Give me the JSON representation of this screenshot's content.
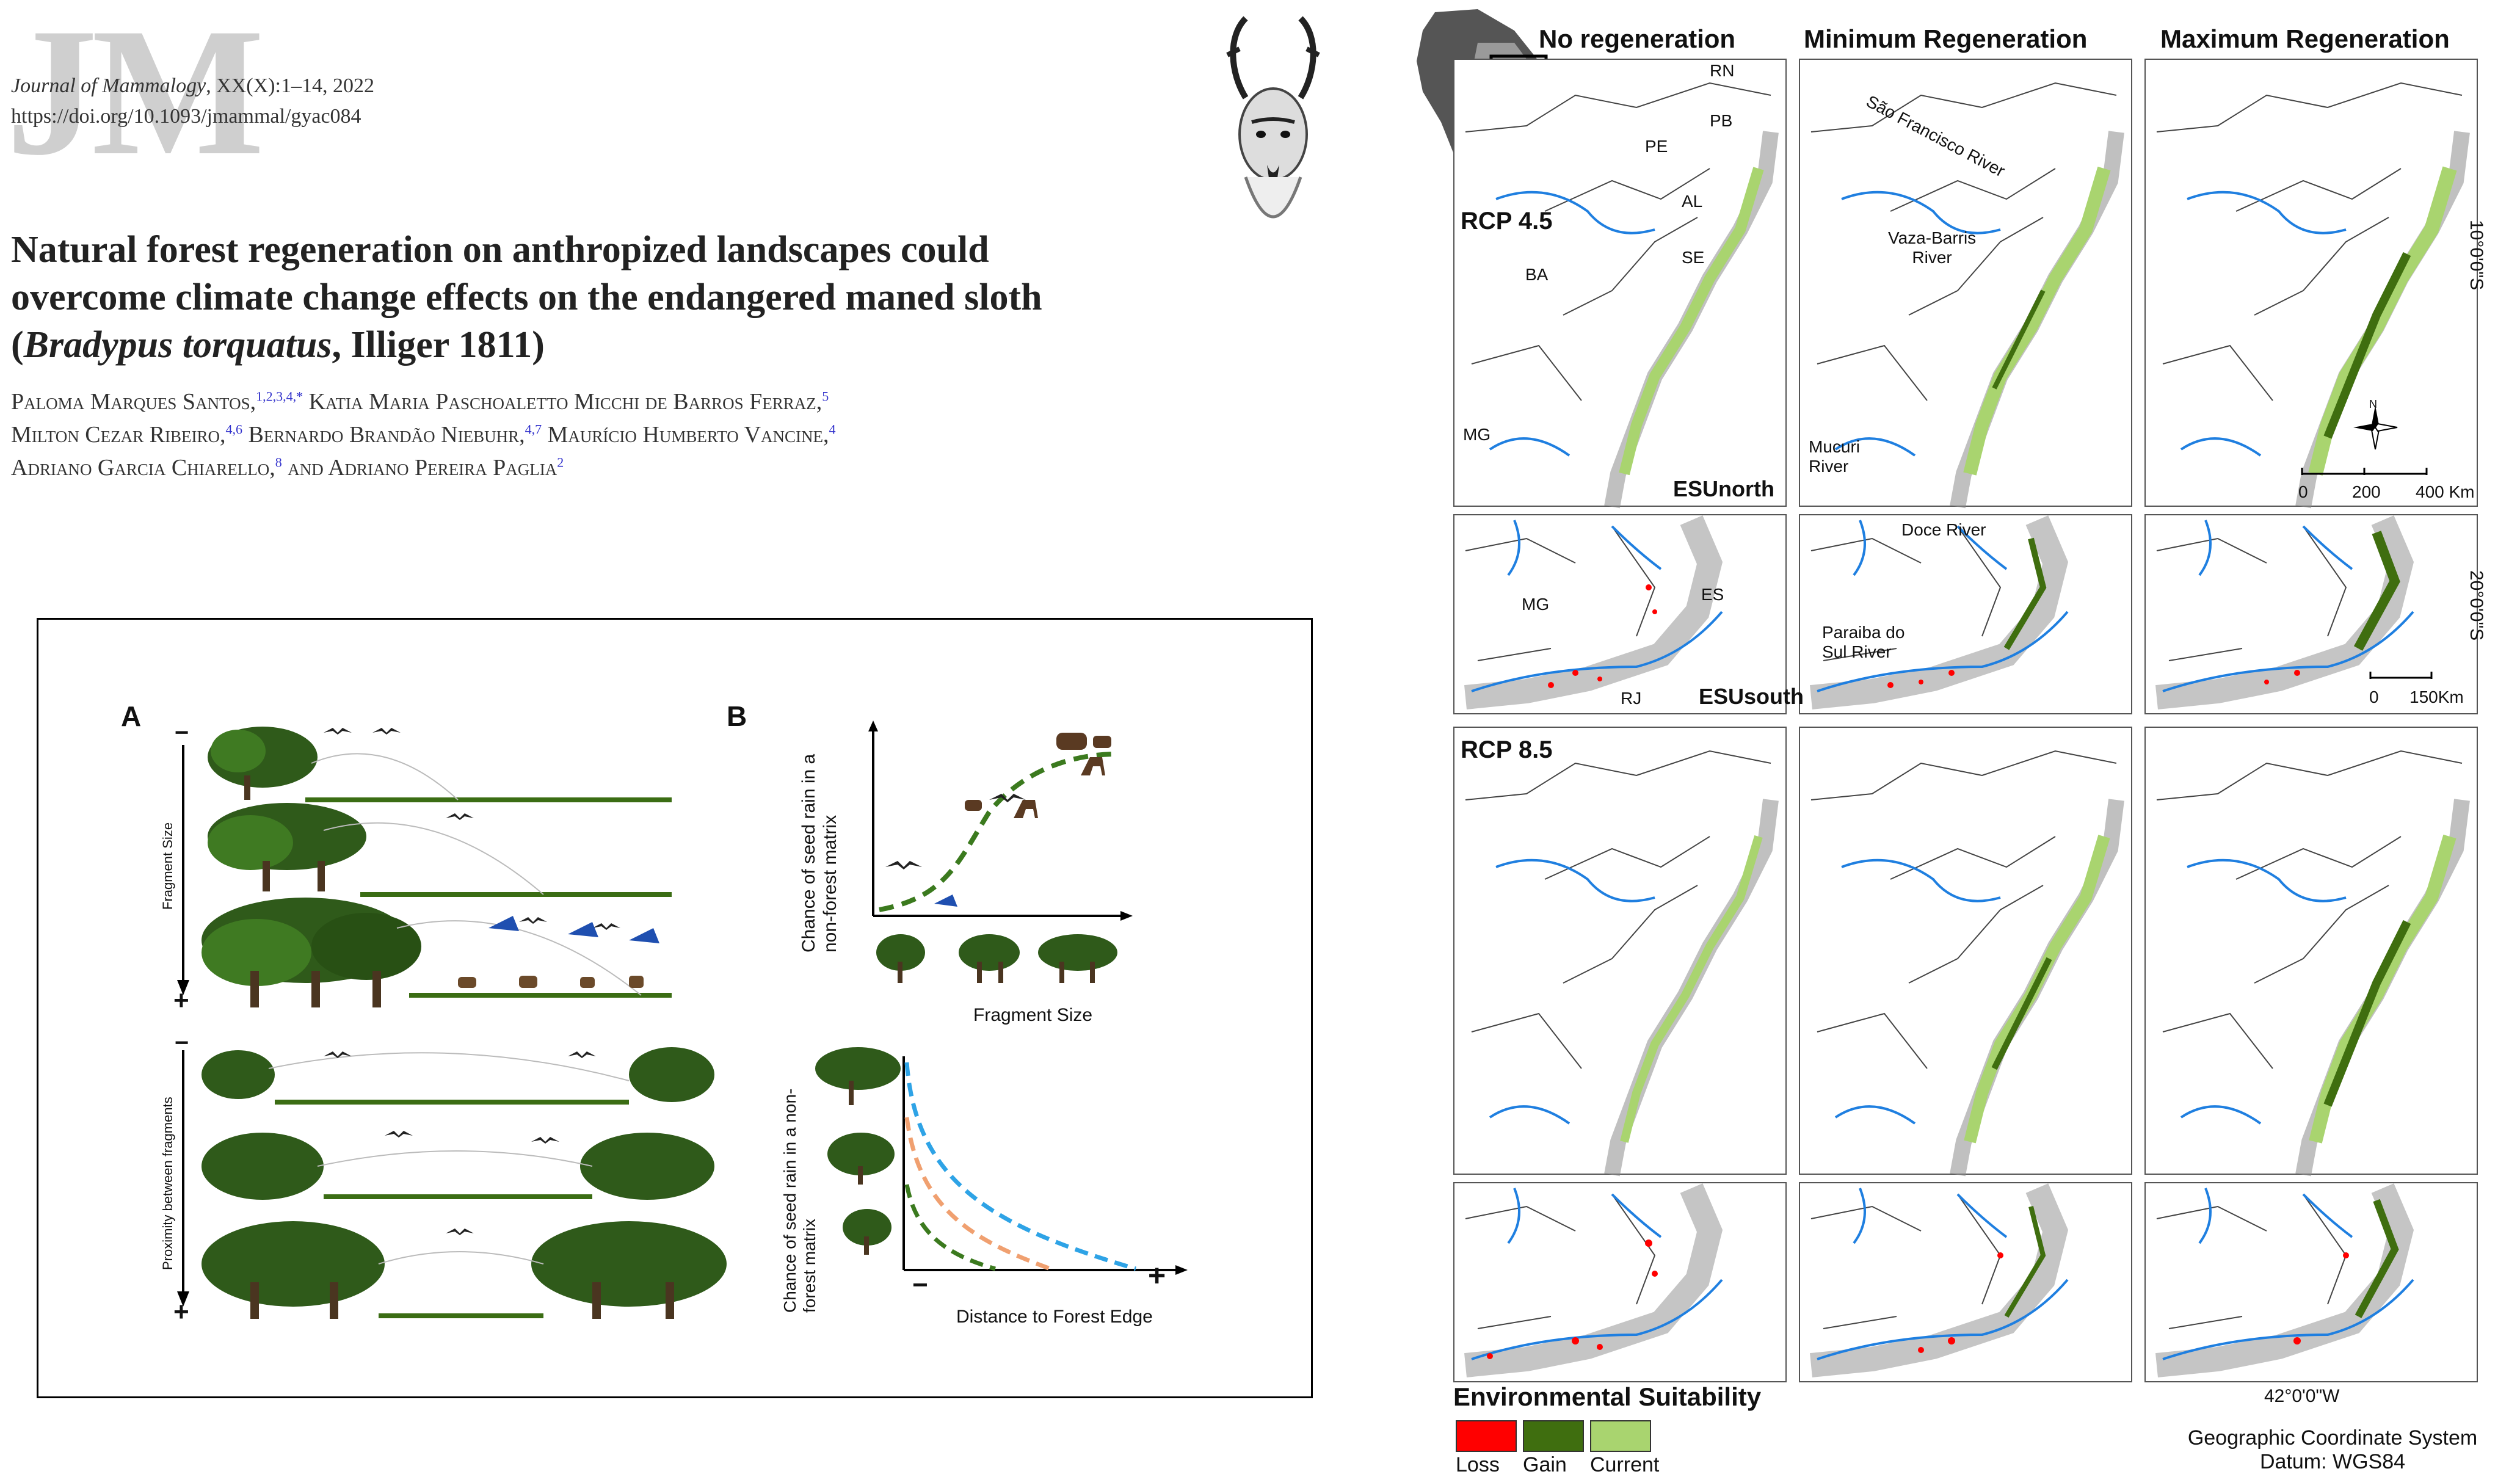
{
  "header": {
    "logo_text": "JM",
    "journal_name": "Journal of Mammalogy",
    "journal_rest": ", XX(X):1–14, 2022",
    "doi": "https://doi.org/10.1093/jmammal/gyac084"
  },
  "title": {
    "line1": "Natural forest regeneration on anthropized landscapes could",
    "line2": "overcome climate change effects on the endangered maned sloth",
    "line3_open": "(",
    "line3_italic": "Bradypus torquatus",
    "line3_rest": ", Illiger 1811)"
  },
  "authors": {
    "a1": "Paloma Marques Santos,",
    "a1_sup": "1,2,3,4,*",
    "a2": " Katia Maria Paschoaletto Micchi de Barros Ferraz,",
    "a2_sup": "5",
    "a3": "Milton Cezar Ribeiro,",
    "a3_sup": "4,6",
    "a4": " Bernardo Brandão Niebuhr,",
    "a4_sup": "4,7",
    "a5": " Maurício Humberto Vancine,",
    "a5_sup": "4",
    "a6": "Adriano Garcia Chiarello,",
    "a6_sup": "8",
    "a7": " and Adriano Pereira Paglia",
    "a7_sup": "2"
  },
  "figure_left": {
    "panel_a": "A",
    "panel_b": "B",
    "minus": "−",
    "plus": "+",
    "axis_fragment_size": "Fragment Size",
    "axis_proximity": "Proximity between fragments",
    "chart1_ylabel_line1": "Chance of seed rain in a",
    "chart1_ylabel_line2": "non-forest matrix",
    "chart1_xlabel": "Fragment Size",
    "chart2_ylabel_line1": "Chance of seed rain in a non-",
    "chart2_ylabel_line2": "forest matrix",
    "chart2_xlabel": "Distance to Forest Edge",
    "chart2_minus": "−",
    "chart2_plus": "+"
  },
  "maps": {
    "col_headers": [
      "No regeneration",
      "Minimum Regeneration",
      "Maximum Regeneration"
    ],
    "rcp45": "RCP 4.5",
    "rcp85": "RCP 8.5",
    "states": {
      "rn": "RN",
      "pb": "PB",
      "pe": "PE",
      "al": "AL",
      "se": "SE",
      "ba": "BA",
      "mg": "MG",
      "es": "ES",
      "rj": "RJ",
      "mg2": "MG"
    },
    "rivers": {
      "sao_francisco": "São Francisco River",
      "vaza_barris_1": "Vaza-Barris",
      "vaza_barris_2": "River",
      "mucuri_1": "Mucuri",
      "mucuri_2": "River",
      "doce": "Doce River",
      "paraiba_1": "Paraiba do",
      "paraiba_2": "Sul River"
    },
    "esu_north": "ESUnorth",
    "esu_south": "ESUsouth",
    "north_arrow": "N",
    "scale1": {
      "s0": "0",
      "s1": "200",
      "s2": "400 Km"
    },
    "scale2": {
      "s0": "0",
      "s1": "150Km"
    },
    "lat_10": "10°0'0\"S",
    "lat_20": "20°0'0\"S",
    "lon_42": "42°0'0\"W"
  },
  "legend": {
    "title": "Environmental Suitability",
    "items": [
      {
        "label": "Loss",
        "color": "#ff0000"
      },
      {
        "label": "Gain",
        "color": "#3f6e0f"
      },
      {
        "label": "Current",
        "color": "#a9d46f"
      }
    ],
    "crs_line1": "Geographic Coordinate System",
    "crs_line2": "Datum: WGS84"
  },
  "colors": {
    "river": "#1f7fe0",
    "current": "#a9d46f",
    "gain": "#3f6e0f",
    "loss": "#ff0000",
    "grey": "#cfcfcf",
    "blue_dash": "#2ea3e6",
    "orange_dash": "#f0a070",
    "green_dash": "#3b7a1e"
  }
}
